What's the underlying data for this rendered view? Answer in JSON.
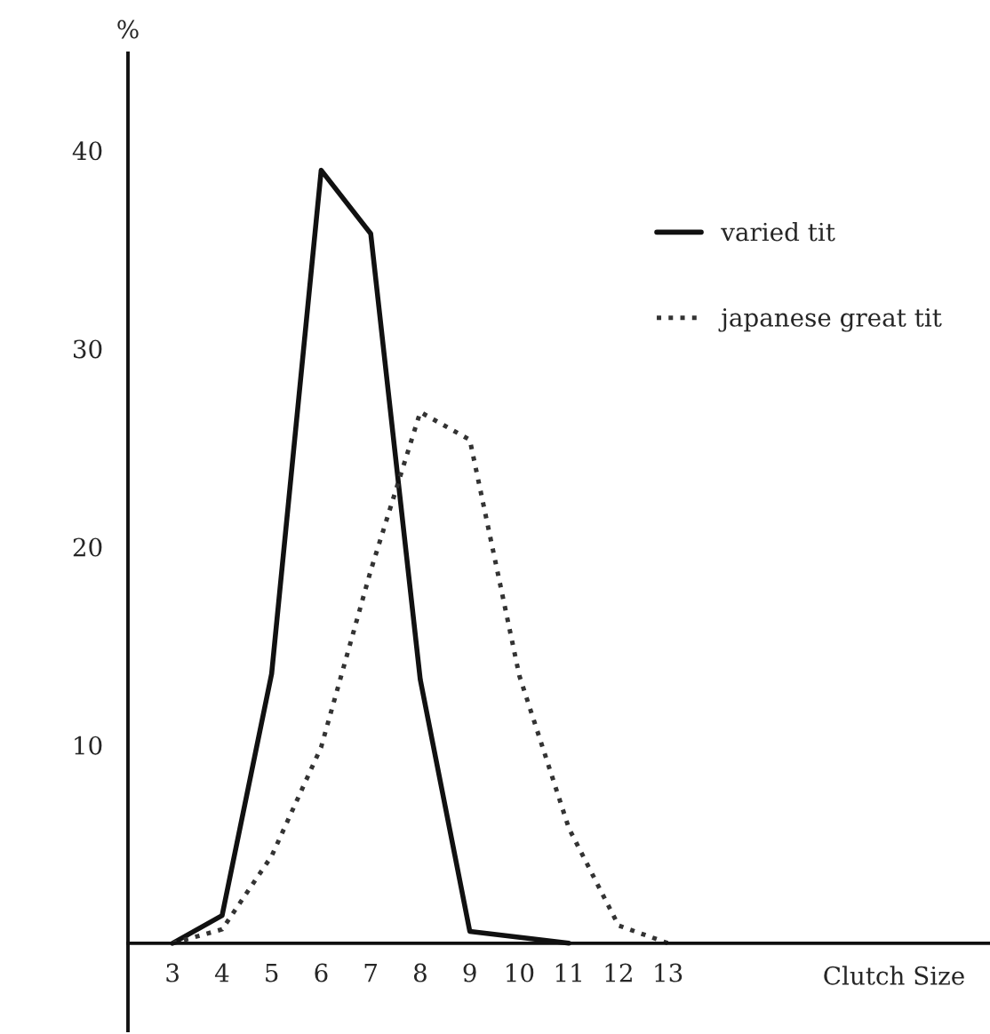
{
  "chart_data": {
    "type": "line",
    "xlabel": "Clutch Size",
    "ylabel": "%",
    "series": [
      {
        "name": "varied tit",
        "color": "#111111",
        "line_style": "solid",
        "x": [
          3,
          4,
          5,
          6,
          7,
          8,
          9,
          11
        ],
        "values": [
          0,
          1.4,
          13.6,
          39,
          35.8,
          13.3,
          0.6,
          0
        ]
      },
      {
        "name": "japanese great tit",
        "color": "#333333",
        "line_style": "dotted",
        "x": [
          3,
          4,
          5,
          6,
          7,
          8,
          9,
          10,
          11,
          12,
          13
        ],
        "values": [
          0,
          0.7,
          4.4,
          9.9,
          18.8,
          26.8,
          25.4,
          13.5,
          5.8,
          0.9,
          0
        ]
      }
    ],
    "xlim": [
      2.1,
      19.5
    ],
    "ylim": [
      -4.4,
      44.9
    ],
    "xticks": [
      3,
      4,
      5,
      6,
      7,
      8,
      9,
      10,
      11,
      12,
      13
    ],
    "yticks": [
      10,
      20,
      30,
      40
    ],
    "legend": "top right",
    "grid": false,
    "marker": "none"
  }
}
